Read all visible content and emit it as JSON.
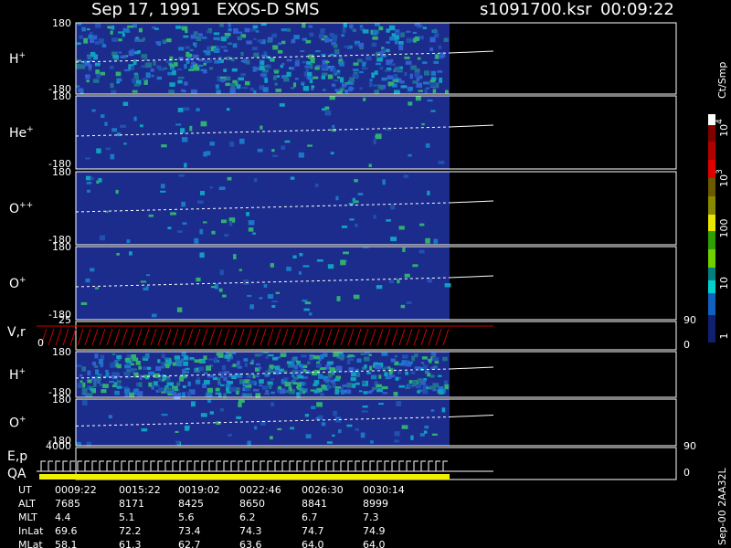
{
  "header": {
    "title": "Sep 17, 1991   EXOS-D SMS",
    "file": "s1091700.ksr",
    "time": "00:09:22"
  },
  "panels": [
    {
      "label": "H",
      "sup": "+",
      "top": "180",
      "bottom": "-180"
    },
    {
      "label": "He",
      "sup": "+",
      "top": "180",
      "bottom": "-180"
    },
    {
      "label": "O",
      "sup": "++",
      "top": "180",
      "bottom": "-180"
    },
    {
      "label": "O",
      "sup": "+",
      "top": "180",
      "bottom": "-180"
    }
  ],
  "vr": {
    "label": "V,r",
    "top": "25",
    "bottom": "0",
    "right_top": "90",
    "right_bottom": "0"
  },
  "panels2": [
    {
      "label": "H",
      "sup": "+",
      "top": "180",
      "bottom": "-180"
    },
    {
      "label": "O",
      "sup": "+",
      "top": "180",
      "bottom": "-180"
    }
  ],
  "ep": {
    "label": "E,p",
    "qa": "QA",
    "top": "4000",
    "right_top": "90",
    "right_bottom": "0"
  },
  "table": {
    "rows": [
      [
        "UT",
        "0009:22",
        "0015:22",
        "0019:02",
        "0022:46",
        "0026:30",
        "0030:14"
      ],
      [
        "ALT",
        "7685",
        "8171",
        "8425",
        "8650",
        "8841",
        "8999"
      ],
      [
        "MLT",
        "4.4",
        "5.1",
        "5.6",
        "6.2",
        "6.7",
        "7.3"
      ],
      [
        "InLat",
        "69.6",
        "72.2",
        "73.4",
        "74.3",
        "74.7",
        "74.9"
      ],
      [
        "MLat",
        "58.1",
        "61.3",
        "62.7",
        "63.6",
        "64.0",
        "64.0"
      ]
    ]
  },
  "colorbar": {
    "title": "Ct/Smp",
    "ticks": [
      {
        "base": "10",
        "sup": "4"
      },
      {
        "base": "10",
        "sup": "3"
      },
      {
        "base": "100"
      },
      {
        "base": "10"
      },
      {
        "base": "1"
      }
    ]
  },
  "footer": "Sep-00  2AA32L"
}
